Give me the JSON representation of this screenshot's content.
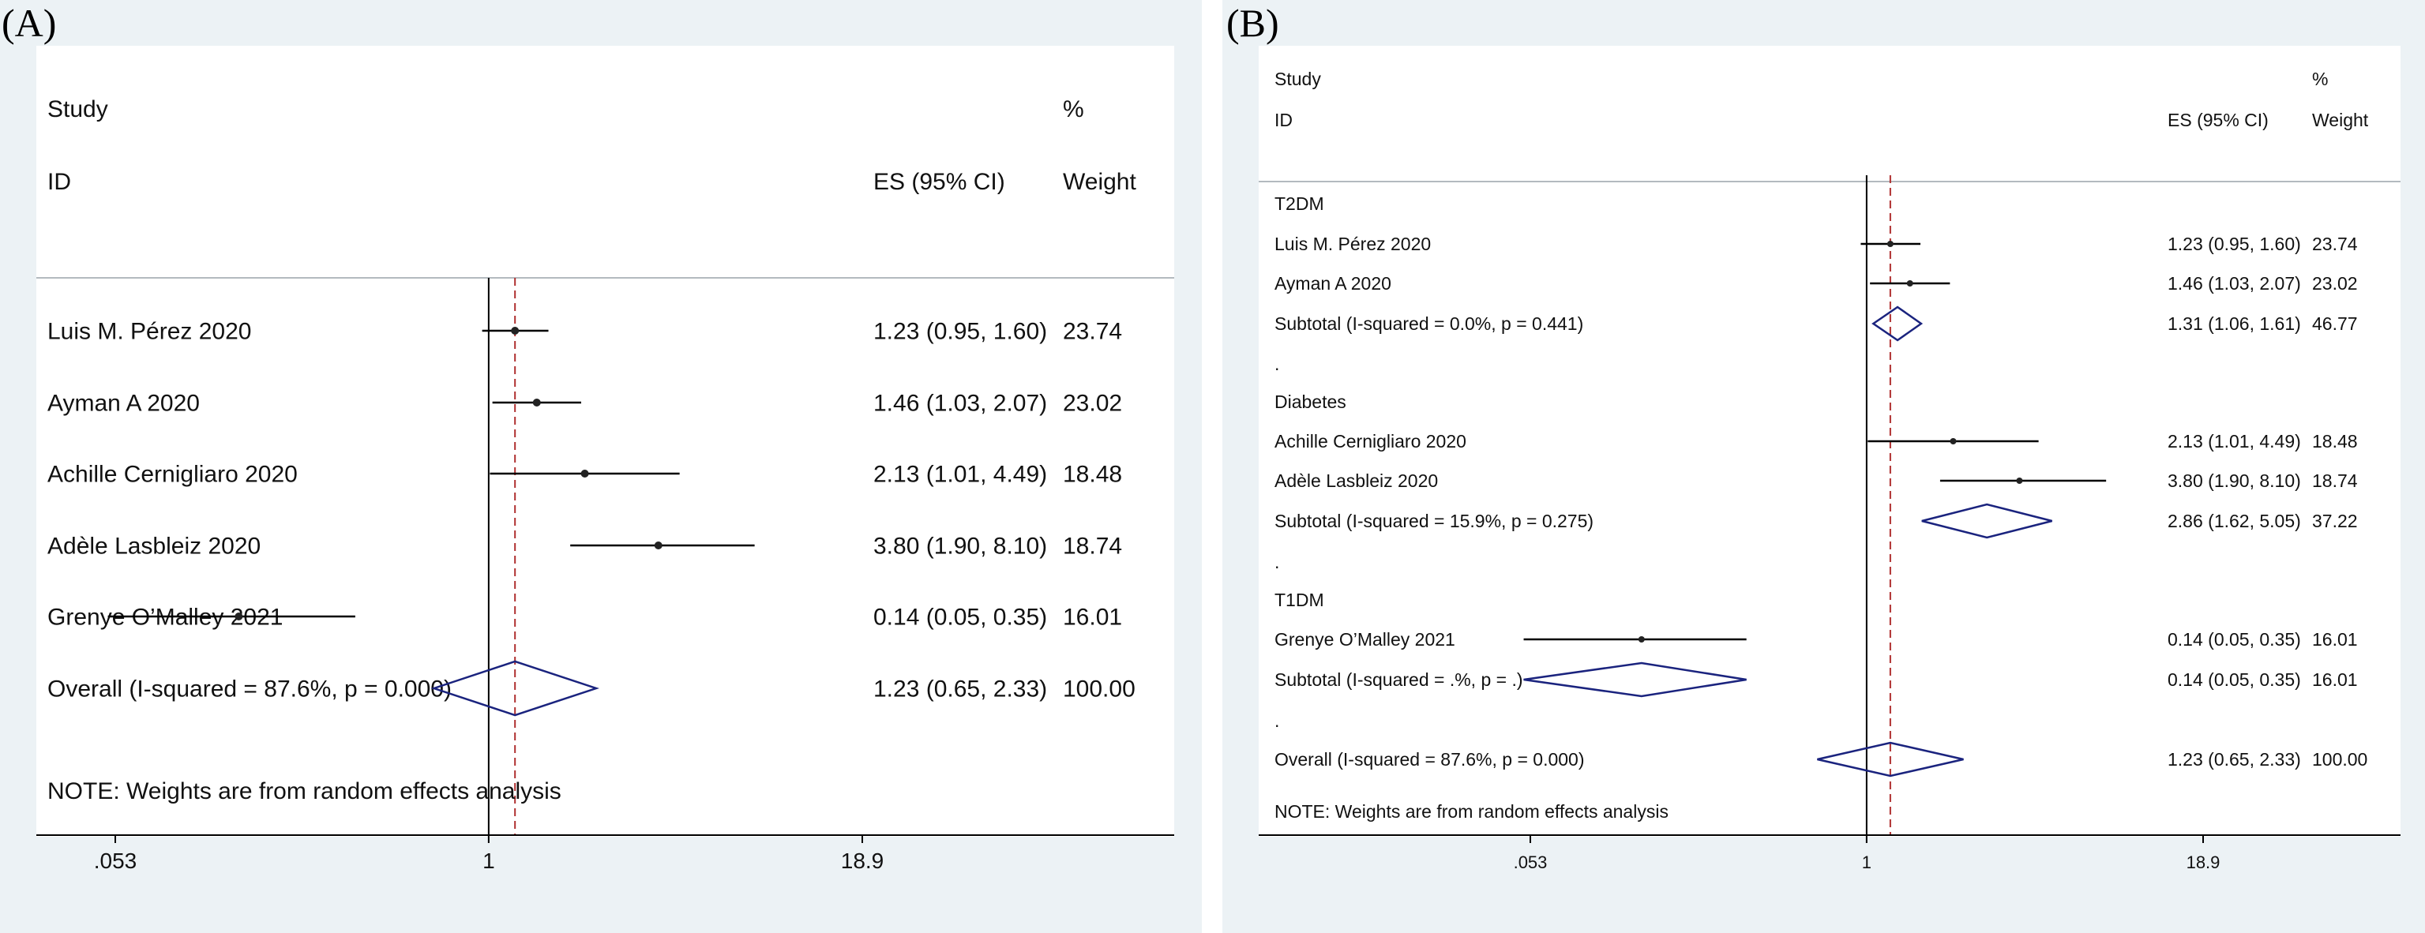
{
  "panels": [
    {
      "label": "(A)",
      "header": {
        "study": "Study",
        "id": "ID",
        "es": "ES (95% CI)",
        "pct": "%",
        "weight": "Weight"
      },
      "axis_ticks": [
        {
          "value": 0.053,
          "label": ".053"
        },
        {
          "value": 1,
          "label": "1"
        },
        {
          "value": 18.9,
          "label": "18.9"
        }
      ],
      "overall_es": 1.23,
      "note": "NOTE: Weights are from random effects analysis"
    },
    {
      "label": "(B)",
      "header": {
        "study": "Study",
        "id": "ID",
        "es": "ES (95% CI)",
        "pct": "%",
        "weight": "Weight"
      },
      "axis_ticks": [
        {
          "value": 0.053,
          "label": ".053"
        },
        {
          "value": 1,
          "label": "1"
        },
        {
          "value": 18.9,
          "label": "18.9"
        }
      ],
      "overall_es": 1.23,
      "note": "NOTE: Weights are from random effects analysis"
    }
  ],
  "chart_data": [
    {
      "type": "forest",
      "x_scale": "log",
      "xlim": [
        0.053,
        18.9
      ],
      "null_line": 1,
      "rows": [
        {
          "kind": "study",
          "name": "Luis M. Pérez  2020",
          "es": 1.23,
          "lo": 0.95,
          "hi": 1.6,
          "text": "1.23 (0.95, 1.60)",
          "weight": "23.74"
        },
        {
          "kind": "study",
          "name": "Ayman A 2020",
          "es": 1.46,
          "lo": 1.03,
          "hi": 2.07,
          "text": "1.46 (1.03, 2.07)",
          "weight": "23.02"
        },
        {
          "kind": "study",
          "name": "Achille Cernigliaro 2020",
          "es": 2.13,
          "lo": 1.01,
          "hi": 4.49,
          "text": "2.13 (1.01, 4.49)",
          "weight": "18.48"
        },
        {
          "kind": "study",
          "name": "Adèle Lasbleiz 2020",
          "es": 3.8,
          "lo": 1.9,
          "hi": 8.1,
          "text": "3.80 (1.90, 8.10)",
          "weight": "18.74"
        },
        {
          "kind": "study",
          "name": "Grenye O’Malley 2021",
          "es": 0.14,
          "lo": 0.05,
          "hi": 0.35,
          "text": "0.14 (0.05, 0.35)",
          "weight": "16.01"
        },
        {
          "kind": "overall",
          "name": "Overall  (I-squared = 87.6%, p = 0.000)",
          "es": 1.23,
          "lo": 0.65,
          "hi": 2.33,
          "text": "1.23 (0.65, 2.33)",
          "weight": "100.00"
        }
      ]
    },
    {
      "type": "forest",
      "x_scale": "log",
      "xlim": [
        0.053,
        18.9
      ],
      "null_line": 1,
      "rows": [
        {
          "kind": "group",
          "name": "T2DM"
        },
        {
          "kind": "study",
          "name": "Luis M. Pérez  2020",
          "es": 1.23,
          "lo": 0.95,
          "hi": 1.6,
          "text": "1.23 (0.95, 1.60)",
          "weight": "23.74"
        },
        {
          "kind": "study",
          "name": "Ayman A 2020",
          "es": 1.46,
          "lo": 1.03,
          "hi": 2.07,
          "text": "1.46 (1.03, 2.07)",
          "weight": "23.02"
        },
        {
          "kind": "subtotal",
          "name": "Subtotal  (I-squared = 0.0%, p = 0.441)",
          "es": 1.31,
          "lo": 1.06,
          "hi": 1.61,
          "text": "1.31 (1.06, 1.61)",
          "weight": "46.77"
        },
        {
          "kind": "dot",
          "name": "."
        },
        {
          "kind": "group",
          "name": "Diabetes"
        },
        {
          "kind": "study",
          "name": "Achille Cernigliaro 2020",
          "es": 2.13,
          "lo": 1.01,
          "hi": 4.49,
          "text": "2.13 (1.01, 4.49)",
          "weight": "18.48"
        },
        {
          "kind": "study",
          "name": "Adèle Lasbleiz 2020",
          "es": 3.8,
          "lo": 1.9,
          "hi": 8.1,
          "text": "3.80 (1.90, 8.10)",
          "weight": "18.74"
        },
        {
          "kind": "subtotal",
          "name": "Subtotal  (I-squared = 15.9%, p = 0.275)",
          "es": 2.86,
          "lo": 1.62,
          "hi": 5.05,
          "text": "2.86 (1.62, 5.05)",
          "weight": "37.22"
        },
        {
          "kind": "dot",
          "name": "."
        },
        {
          "kind": "group",
          "name": "T1DM"
        },
        {
          "kind": "study",
          "name": "Grenye O’Malley 2021",
          "es": 0.14,
          "lo": 0.05,
          "hi": 0.35,
          "text": "0.14 (0.05, 0.35)",
          "weight": "16.01"
        },
        {
          "kind": "subtotal",
          "name": "Subtotal  (I-squared = .%, p = .)",
          "es": 0.14,
          "lo": 0.05,
          "hi": 0.35,
          "text": "0.14 (0.05, 0.35)",
          "weight": "16.01"
        },
        {
          "kind": "dot",
          "name": "."
        },
        {
          "kind": "overall",
          "name": "Overall  (I-squared = 87.6%, p = 0.000)",
          "es": 1.23,
          "lo": 0.65,
          "hi": 2.33,
          "text": "1.23 (0.65, 2.33)",
          "weight": "100.00"
        }
      ]
    }
  ],
  "colors": {
    "panel_background": "#ecf2f5",
    "plot_background": "#ffffff",
    "diamond": "#1a237e",
    "reference_line": "#b03030",
    "point": "#222222",
    "weight_box": "#b5b5b5"
  }
}
